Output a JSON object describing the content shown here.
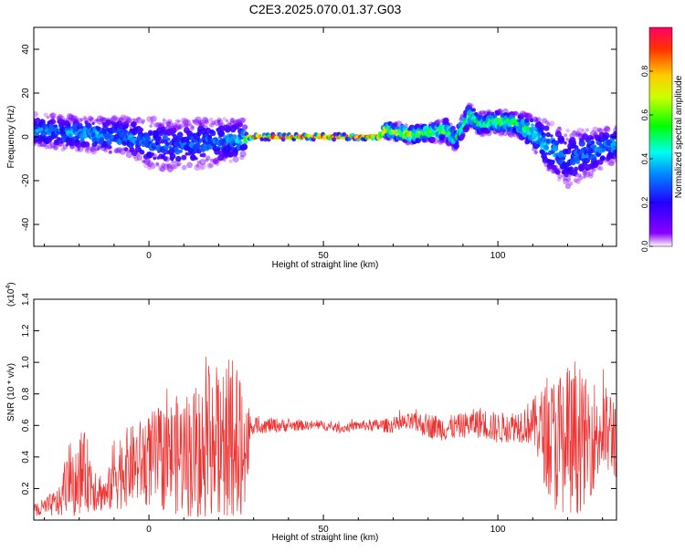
{
  "title": "C2E3.2025.070.01.37.G03",
  "chart_data": [
    {
      "type": "heatmap",
      "name": "spectrogram",
      "xlabel": "Height of straight line (km)",
      "ylabel": "Frequency (Hz)",
      "xlim": [
        -33,
        134
      ],
      "ylim": [
        -50,
        50
      ],
      "xticks": [
        0,
        50,
        100
      ],
      "yticks": [
        -40,
        -20,
        0,
        20,
        40
      ],
      "colorbar": {
        "label": "Normalized spectral amplitude",
        "range": [
          0,
          1
        ],
        "ticks": [
          "0.0",
          "0.2",
          "0.4",
          "0.6",
          "0.8"
        ],
        "colors": [
          "#ffffff",
          "#8b00ff",
          "#2200ff",
          "#0088ff",
          "#00ffee",
          "#00ff00",
          "#ccff00",
          "#ffcc00",
          "#ff3300",
          "#ff0066"
        ]
      },
      "ridge": {
        "x": [
          -33,
          -25,
          -15,
          -5,
          0,
          10,
          20,
          27,
          28,
          40,
          50,
          60,
          66,
          68,
          75,
          80,
          85,
          88,
          92,
          95,
          100,
          105,
          110,
          115,
          120,
          125,
          130,
          134
        ],
        "freq": [
          3,
          2,
          1,
          0,
          -3,
          -4,
          -2,
          -1,
          0,
          0,
          0,
          0,
          0,
          3,
          1,
          2,
          3,
          -1,
          10,
          6,
          7,
          6,
          2,
          -5,
          -10,
          -8,
          -5,
          -3
        ],
        "spread": [
          6,
          6,
          6,
          7,
          9,
          9,
          8,
          7,
          1,
          1,
          1,
          1,
          1,
          3,
          3,
          3,
          4,
          4,
          4,
          4,
          4,
          4,
          6,
          9,
          10,
          9,
          7,
          6
        ],
        "amplitude": [
          0.35,
          0.35,
          0.4,
          0.35,
          0.3,
          0.3,
          0.35,
          0.4,
          0.9,
          0.95,
          1.0,
          1.0,
          0.95,
          0.7,
          0.8,
          0.6,
          0.6,
          0.5,
          0.55,
          0.5,
          0.6,
          0.55,
          0.5,
          0.4,
          0.3,
          0.35,
          0.35,
          0.4
        ]
      }
    },
    {
      "type": "line",
      "name": "snr",
      "xlabel": "Height of straight line (km)",
      "ylabel": "SNR (10 * v/v)",
      "multiplier_label": "(x10",
      "multiplier_exp": "4",
      "multiplier_close": ")",
      "xlim": [
        -33,
        134
      ],
      "ylim": [
        0,
        1.4
      ],
      "xticks": [
        0,
        50,
        100
      ],
      "yticks": [
        0.2,
        0.4,
        0.6,
        0.8,
        1.0,
        1.2,
        1.4
      ],
      "color": "#ee3333",
      "envelope": {
        "x": [
          -33,
          -30,
          -25,
          -24,
          -20,
          -18,
          -15,
          -12,
          -10,
          -8,
          -5,
          0,
          5,
          10,
          15,
          20,
          22,
          25,
          28,
          29,
          30,
          35,
          40,
          45,
          50,
          55,
          60,
          65,
          70,
          75,
          80,
          85,
          90,
          95,
          100,
          105,
          110,
          112,
          115,
          118,
          120,
          123,
          125,
          128,
          130,
          134
        ],
        "base": [
          0.05,
          0.08,
          0.12,
          0.25,
          0.28,
          0.3,
          0.2,
          0.15,
          0.3,
          0.32,
          0.35,
          0.38,
          0.4,
          0.42,
          0.42,
          0.45,
          0.42,
          0.45,
          0.45,
          0.58,
          0.6,
          0.6,
          0.6,
          0.6,
          0.6,
          0.58,
          0.6,
          0.6,
          0.6,
          0.62,
          0.6,
          0.58,
          0.6,
          0.62,
          0.58,
          0.6,
          0.62,
          0.58,
          0.5,
          0.48,
          0.45,
          0.48,
          0.5,
          0.55,
          0.55,
          0.55
        ],
        "amp": [
          0.05,
          0.06,
          0.1,
          0.2,
          0.3,
          0.25,
          0.15,
          0.1,
          0.25,
          0.25,
          0.25,
          0.3,
          0.35,
          0.4,
          0.45,
          0.55,
          0.6,
          0.6,
          0.5,
          0.06,
          0.05,
          0.05,
          0.04,
          0.03,
          0.03,
          0.03,
          0.03,
          0.04,
          0.05,
          0.06,
          0.08,
          0.08,
          0.08,
          0.1,
          0.1,
          0.1,
          0.15,
          0.25,
          0.4,
          0.5,
          0.55,
          0.45,
          0.4,
          0.35,
          0.3,
          0.3
        ]
      }
    }
  ]
}
